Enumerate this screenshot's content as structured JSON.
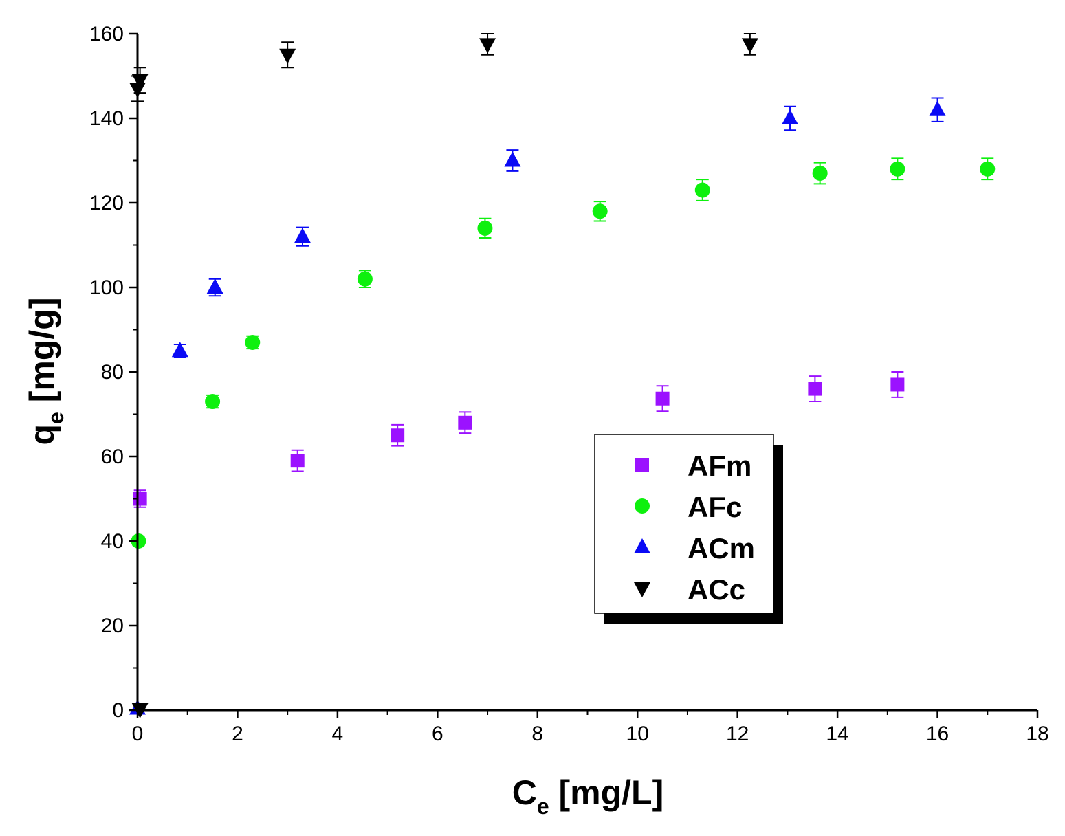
{
  "chart_data": {
    "type": "scatter",
    "xlabel": {
      "main": "C",
      "sub": "e",
      "unit": " [mg/L]"
    },
    "ylabel": {
      "main": "q",
      "sub": "e",
      "unit": " [mg/g]"
    },
    "xlim": [
      0,
      18
    ],
    "ylim": [
      0,
      160
    ],
    "xticks": [
      0,
      2,
      4,
      6,
      8,
      10,
      12,
      14,
      16,
      18
    ],
    "yticks": [
      0,
      20,
      40,
      60,
      80,
      100,
      120,
      140,
      160
    ],
    "grid": false,
    "legend_position": "center-right",
    "series": [
      {
        "name": "AFm",
        "marker": "square",
        "color": "#9b12ff",
        "points": [
          {
            "x": 0.05,
            "y": 50,
            "err": 2
          },
          {
            "x": 3.2,
            "y": 59,
            "err": 2.5
          },
          {
            "x": 5.2,
            "y": 65,
            "err": 2.5
          },
          {
            "x": 6.55,
            "y": 68,
            "err": 2.5
          },
          {
            "x": 10.5,
            "y": 73.7,
            "err": 3
          },
          {
            "x": 13.55,
            "y": 76,
            "err": 3
          },
          {
            "x": 15.2,
            "y": 77,
            "err": 3
          }
        ]
      },
      {
        "name": "AFc",
        "marker": "circle",
        "color": "#0ef00e",
        "points": [
          {
            "x": 0.02,
            "y": 40,
            "err": 1
          },
          {
            "x": 1.5,
            "y": 73,
            "err": 1.5
          },
          {
            "x": 2.3,
            "y": 87,
            "err": 1.5
          },
          {
            "x": 4.55,
            "y": 102,
            "err": 2
          },
          {
            "x": 6.95,
            "y": 114,
            "err": 2.3
          },
          {
            "x": 9.25,
            "y": 118,
            "err": 2.3
          },
          {
            "x": 11.3,
            "y": 123,
            "err": 2.5
          },
          {
            "x": 13.65,
            "y": 127,
            "err": 2.5
          },
          {
            "x": 15.2,
            "y": 128,
            "err": 2.5
          },
          {
            "x": 17.0,
            "y": 128,
            "err": 2.5
          }
        ]
      },
      {
        "name": "ACm",
        "marker": "triangle-up",
        "color": "#0a0af5",
        "points": [
          {
            "x": 0.0,
            "y": 0.4,
            "err": 0
          },
          {
            "x": 0.85,
            "y": 85,
            "err": 1.5
          },
          {
            "x": 1.55,
            "y": 100,
            "err": 2
          },
          {
            "x": 3.3,
            "y": 112,
            "err": 2.2
          },
          {
            "x": 7.5,
            "y": 130,
            "err": 2.5
          },
          {
            "x": 13.05,
            "y": 140,
            "err": 2.8
          },
          {
            "x": 16.0,
            "y": 142,
            "err": 2.8
          }
        ]
      },
      {
        "name": "ACc",
        "marker": "triangle-down",
        "color": "#000000",
        "points": [
          {
            "x": 0.05,
            "y": 0.2,
            "err": 0
          },
          {
            "x": 0.0,
            "y": 147,
            "err": 3
          },
          {
            "x": 0.05,
            "y": 149,
            "err": 3
          },
          {
            "x": 3.0,
            "y": 155,
            "err": 3
          },
          {
            "x": 7.0,
            "y": 157.5,
            "err": 2.5
          },
          {
            "x": 12.25,
            "y": 157.5,
            "err": 2.5
          }
        ]
      }
    ]
  }
}
